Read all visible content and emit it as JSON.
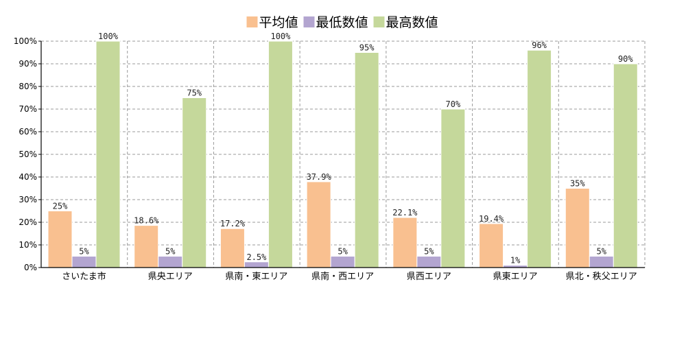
{
  "chart_data": {
    "type": "bar",
    "title": "",
    "xlabel": "",
    "ylabel": "",
    "ylim": [
      0,
      100
    ],
    "y_ticks": [
      "0%",
      "10%",
      "20%",
      "30%",
      "40%",
      "50%",
      "60%",
      "70%",
      "80%",
      "90%",
      "100%"
    ],
    "grid": true,
    "legend_position": "top-center",
    "categories": [
      "さいたま市",
      "県央エリア",
      "県南・東エリア",
      "県南・西エリア",
      "県西エリア",
      "県東エリア",
      "県北・秩父エリア"
    ],
    "series": [
      {
        "name": "平均値",
        "color": "#f9c090",
        "values": [
          25,
          18.6,
          17.2,
          37.9,
          22.1,
          19.4,
          35
        ],
        "labels": [
          "25%",
          "18.6%",
          "17.2%",
          "37.9%",
          "22.1%",
          "19.4%",
          "35%"
        ]
      },
      {
        "name": "最低数値",
        "color": "#b3a5d0",
        "values": [
          5,
          5,
          2.5,
          5,
          5,
          1,
          5
        ],
        "labels": [
          "5%",
          "5%",
          "2.5%",
          "5%",
          "5%",
          "1%",
          "5%"
        ]
      },
      {
        "name": "最高数値",
        "color": "#c5d89b",
        "values": [
          100,
          75,
          100,
          95,
          70,
          96,
          90
        ],
        "labels": [
          "100%",
          "75%",
          "100%",
          "95%",
          "70%",
          "96%",
          "90%"
        ]
      }
    ]
  }
}
